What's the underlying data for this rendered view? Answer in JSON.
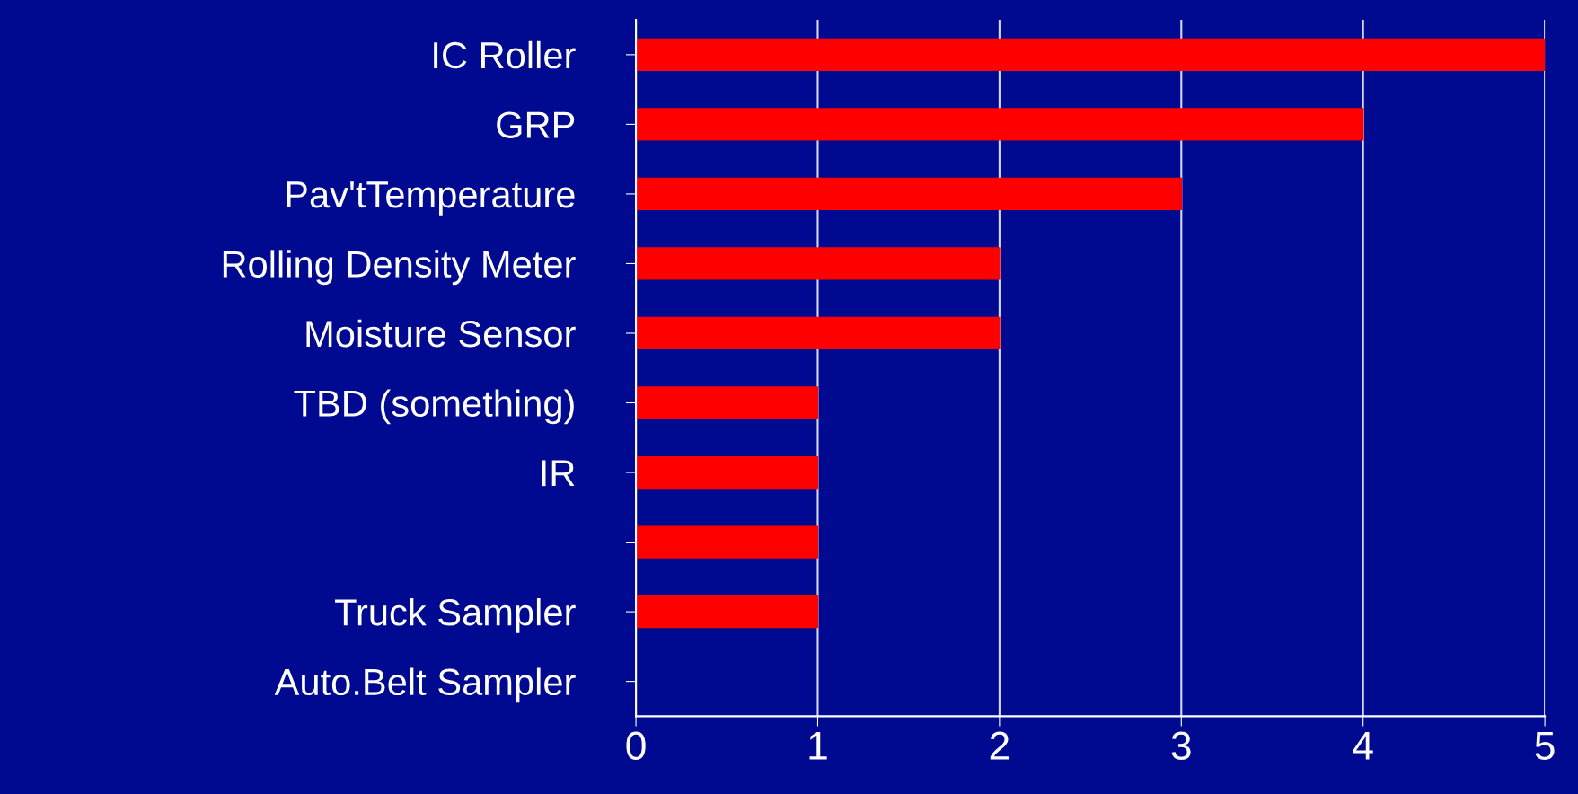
{
  "chart_data": {
    "type": "bar",
    "orientation": "horizontal",
    "categories": [
      "IC Roller",
      "GRP",
      "Pav'tTemperature",
      "Rolling Density Meter",
      "Moisture Sensor",
      "TBD (something)",
      "IR",
      null,
      "Truck Sampler",
      "Auto.Belt Sampler"
    ],
    "values": [
      5,
      4,
      3,
      2,
      2,
      1,
      1,
      1,
      1,
      0
    ],
    "color": "#ff0000",
    "xlim": [
      0,
      5
    ],
    "xticks": [
      0,
      1,
      2,
      3,
      4,
      5
    ],
    "grid": "x"
  }
}
